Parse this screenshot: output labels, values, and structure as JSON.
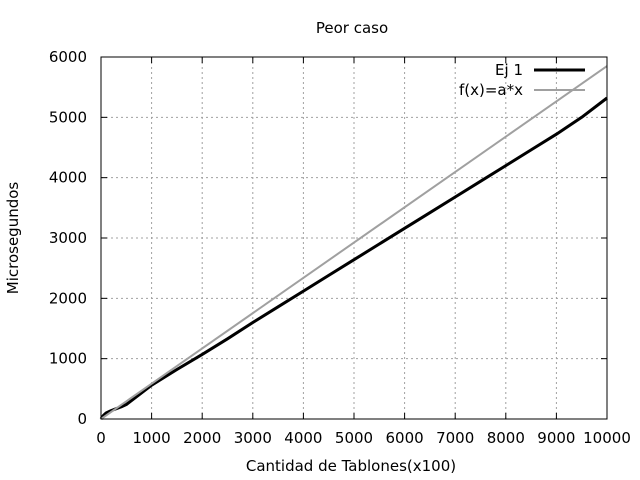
{
  "chart_data": {
    "type": "line",
    "title": "Peor caso",
    "xlabel": "Cantidad de Tablones(x100)",
    "ylabel": "Microsegundos",
    "xlim": [
      0,
      10000
    ],
    "ylim": [
      0,
      6000
    ],
    "xticks": [
      "0",
      "1000",
      "2000",
      "3000",
      "4000",
      "5000",
      "6000",
      "7000",
      "8000",
      "9000",
      "10000"
    ],
    "yticks": [
      "0",
      "1000",
      "2000",
      "3000",
      "4000",
      "5000",
      "6000"
    ],
    "grid": true,
    "legend_position": "top-right",
    "series": [
      {
        "name": "Ej 1",
        "color": "#000000",
        "style": "solid",
        "x": [
          0,
          50,
          100,
          200,
          300,
          400,
          500,
          1000,
          1500,
          2000,
          2500,
          3000,
          3500,
          4000,
          4500,
          5000,
          5500,
          6000,
          6500,
          7000,
          7500,
          8000,
          8500,
          9000,
          9500,
          10000
        ],
        "y": [
          0,
          60,
          100,
          140,
          170,
          200,
          240,
          560,
          820,
          1070,
          1330,
          1600,
          1860,
          2120,
          2380,
          2640,
          2900,
          3160,
          3420,
          3680,
          3940,
          4200,
          4460,
          4720,
          5000,
          5320
        ]
      },
      {
        "name": "f(x)=a*x",
        "color": "#a0a0a0",
        "style": "solid",
        "x": [
          0,
          10000
        ],
        "y": [
          0,
          5850
        ]
      }
    ]
  }
}
